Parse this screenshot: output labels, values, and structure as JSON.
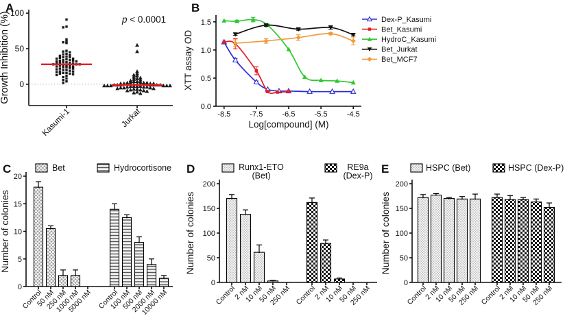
{
  "chart_data": [
    {
      "panel": "A",
      "type": "scatter",
      "ylabel": "Growth Inhibition (%)",
      "ylim": [
        -30,
        105
      ],
      "yticks": [
        0,
        50,
        100
      ],
      "annotation": "p < 0.0001",
      "zero_line": 0,
      "median_color": "#ed1b24",
      "point_color": "#1a1a1a",
      "groups": [
        {
          "name": "Kasumi-1",
          "marker": "square",
          "median": 28,
          "values": [
            91,
            81,
            80,
            63,
            60,
            59,
            58,
            47,
            46,
            45,
            43,
            42,
            41,
            40,
            39,
            38,
            38,
            37,
            36,
            36,
            35,
            34,
            34,
            33,
            33,
            32,
            32,
            31,
            31,
            30,
            30,
            29,
            29,
            28,
            28,
            28,
            27,
            27,
            26,
            26,
            25,
            25,
            24,
            24,
            23,
            22,
            22,
            21,
            20,
            20,
            19,
            18,
            18,
            17,
            16,
            16,
            15,
            15,
            14,
            13,
            12,
            10,
            8,
            6,
            4,
            2
          ]
        },
        {
          "name": "Jurkat",
          "marker": "triangle",
          "median": -1,
          "values": [
            55,
            46,
            18,
            15,
            13,
            12,
            10,
            9,
            8,
            7,
            6,
            5,
            4,
            4,
            3,
            3,
            2,
            2,
            2,
            1,
            1,
            1,
            1,
            0,
            0,
            0,
            0,
            0,
            0,
            0,
            0,
            -1,
            -1,
            -1,
            -1,
            -1,
            -1,
            -1,
            -2,
            -2,
            -2,
            -2,
            -2,
            -2,
            -3,
            -3,
            -3,
            -3,
            -4,
            -4,
            -4,
            -5,
            -5,
            -5,
            -6,
            -6,
            -7,
            -7,
            -8,
            -8,
            -9,
            -9,
            -10,
            -11,
            -12,
            -13
          ]
        }
      ]
    },
    {
      "panel": "B",
      "type": "line",
      "xlabel": "Log[compound] (M)",
      "ylabel": "XTT assay OD",
      "xlim": [
        -8.75,
        -4.25
      ],
      "ylim": [
        0,
        1.62
      ],
      "xticks": [
        -8.5,
        -7.5,
        -6.5,
        -5.5,
        -4.5
      ],
      "yticks": [
        0.0,
        0.5,
        1.0,
        1.5
      ],
      "legend_position": "right",
      "series": [
        {
          "name": "Dex-P_Kasumi",
          "color": "#2d2dd2",
          "marker": "triangle-open",
          "x": [
            -8.5,
            -8.15,
            -7.5,
            -7.15,
            -6.8,
            -6.5,
            -5.85,
            -5.15,
            -4.5
          ],
          "y": [
            1.14,
            0.82,
            0.43,
            0.3,
            0.27,
            0.27,
            0.26,
            0.26,
            0.26
          ],
          "err": [
            0,
            0.03,
            0.02,
            0,
            0,
            0,
            0,
            0,
            0
          ]
        },
        {
          "name": "Bet_Kasumi",
          "color": "#e31e24",
          "marker": "square",
          "x": [
            -8.5,
            -8.15,
            -7.5,
            -7.15,
            -6.85,
            -6.5
          ],
          "y": [
            1.14,
            1.11,
            0.63,
            0.26,
            0.25,
            0.26
          ],
          "err": [
            0,
            0.09,
            0.07,
            0.02,
            0,
            0
          ]
        },
        {
          "name": "HydroC_Kasumi",
          "color": "#2fc72f",
          "marker": "triangle",
          "x": [
            -8.5,
            -8.1,
            -7.6,
            -7.15,
            -6.5,
            -6.0,
            -5.5,
            -5.0,
            -4.5
          ],
          "y": [
            1.52,
            1.51,
            1.54,
            1.44,
            1.01,
            0.52,
            0.46,
            0.45,
            0.42
          ],
          "err": [
            0,
            0.02,
            0.04,
            0.02,
            0,
            0,
            0,
            0,
            0
          ]
        },
        {
          "name": "Bet_Jurkat",
          "color": "#111111",
          "marker": "triangle-down",
          "x": [
            -8.15,
            -7.2,
            -6.2,
            -5.2,
            -4.5
          ],
          "y": [
            1.28,
            1.44,
            1.37,
            1.4,
            1.27
          ],
          "err": [
            0.02,
            0.02,
            0.02,
            0.03,
            0.02
          ]
        },
        {
          "name": "Bet_MCF7",
          "color": "#f09c3c",
          "marker": "diamond",
          "x": [
            -8.15,
            -7.2,
            -6.2,
            -5.2,
            -4.5
          ],
          "y": [
            1.12,
            1.16,
            1.22,
            1.29,
            1.16
          ],
          "err": [
            0.06,
            0.04,
            0.05,
            0.02,
            0.07
          ]
        }
      ]
    },
    {
      "panel": "C",
      "type": "bar",
      "ylabel": "Number of colonies",
      "ylim": [
        0,
        20
      ],
      "yticks": [
        0,
        5,
        10,
        15,
        20
      ],
      "groups": [
        {
          "name": "Bet",
          "name_lines": [
            "Bet"
          ],
          "pattern": "crosshatch-gray",
          "categories": [
            "Control",
            "50 nM",
            "250 nM",
            "1000 nM",
            "5000 nM"
          ],
          "values": [
            18,
            10.5,
            2,
            2,
            0
          ],
          "errors": [
            1,
            0.5,
            1,
            1,
            0
          ]
        },
        {
          "name": "Hydrocortisone",
          "name_lines": [
            "Hydrocortisone"
          ],
          "pattern": "horizontal-lines",
          "categories": [
            "Control",
            "100 nM",
            "500 nM",
            "2000 nM",
            "10000 nM"
          ],
          "values": [
            14,
            12.5,
            8,
            4,
            1.5
          ],
          "errors": [
            1,
            0.5,
            1,
            1,
            0.5
          ]
        }
      ]
    },
    {
      "panel": "D",
      "type": "bar",
      "ylabel": "Number of colonies",
      "ylim": [
        0,
        200
      ],
      "yticks": [
        0,
        50,
        100,
        150,
        200
      ],
      "groups": [
        {
          "name": "Runx1-ETO (Bet)",
          "name_lines": [
            "Runx1-ETO",
            "(Bet)"
          ],
          "pattern": "fine-crosshatch",
          "categories": [
            "Control",
            "2 nM",
            "10 nM",
            "50 nM",
            "250 nM"
          ],
          "values": [
            170,
            138,
            61,
            3,
            0
          ],
          "errors": [
            8,
            9,
            15,
            1,
            0
          ]
        },
        {
          "name": "RE9a (Dex-P)",
          "name_lines": [
            "RE9a",
            "(Dex-P)"
          ],
          "pattern": "checkerboard",
          "categories": [
            "Control",
            "2 nM",
            "10 nM",
            "50 nM",
            "250 nM"
          ],
          "values": [
            162,
            79,
            7,
            0,
            0
          ],
          "errors": [
            9,
            7,
            2,
            0,
            0
          ]
        }
      ]
    },
    {
      "panel": "E",
      "type": "bar",
      "ylabel": "Number of colonies",
      "ylim": [
        0,
        200
      ],
      "yticks": [
        0,
        50,
        100,
        150,
        200
      ],
      "groups": [
        {
          "name": "HSPC (Bet)",
          "name_lines": [
            "HSPC (Bet)"
          ],
          "pattern": "fine-crosshatch",
          "categories": [
            "Control",
            "2 nM",
            "10 nM",
            "50 nM",
            "250 nM"
          ],
          "values": [
            172,
            177,
            170,
            169,
            169
          ],
          "errors": [
            6,
            3,
            2,
            5,
            10
          ]
        },
        {
          "name": "HSPC (Dex-P)",
          "name_lines": [
            "HSPC (Dex-P)"
          ],
          "pattern": "checkerboard",
          "categories": [
            "Control",
            "2 nM",
            "10 nM",
            "50 nM",
            "250 nM"
          ],
          "values": [
            172,
            168,
            168,
            163,
            152
          ],
          "errors": [
            7,
            8,
            4,
            6,
            9
          ]
        }
      ]
    }
  ]
}
